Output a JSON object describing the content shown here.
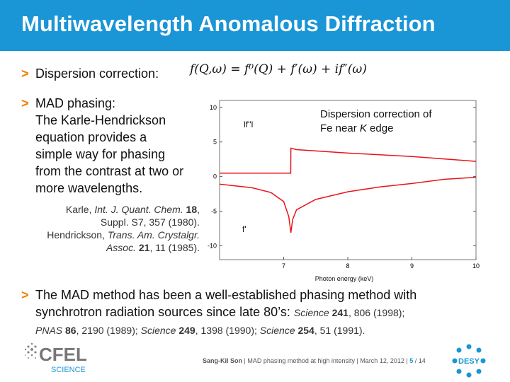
{
  "title": "Multiwavelength Anomalous Diffraction",
  "bullet1": {
    "label": "Dispersion correction:",
    "formula": "f(Q,ω) = f⁰(Q) + f′(ω) + if″(ω)"
  },
  "bullet2": {
    "lines": [
      "MAD phasing:",
      "The Karle-Hendrickson",
      "equation provides a",
      "simple way for phasing",
      "from the contrast at two or",
      "more wavelengths."
    ]
  },
  "refs": [
    [
      "Karle, ",
      "Int. J. Quant. Chem.",
      " 18",
      ","
    ],
    [
      "Suppl. S7, 357 (1980)."
    ],
    [
      "Hendrickson, ",
      "Trans. Am. Crystalgr."
    ],
    [
      "Assoc.",
      " 21",
      ", 11 (1985)."
    ]
  ],
  "chart_data": {
    "type": "line",
    "annotation": "Dispersion correction of Fe near K edge",
    "annotation_line1": "Dispersion correction of",
    "annotation_line2_pre": "Fe near ",
    "annotation_line2_ital": "K",
    "annotation_line2_post": " edge",
    "xlabel": "Photon energy (keV)",
    "xlim": [
      6,
      10
    ],
    "ylim": [
      -12,
      11
    ],
    "xticks": [
      7,
      8,
      9,
      10
    ],
    "yticks": [
      10,
      5,
      0,
      -5,
      -10
    ],
    "series": [
      {
        "name": "lf''l",
        "color": "#e8141b",
        "points": [
          [
            6,
            0.5
          ],
          [
            7.05,
            0.5
          ],
          [
            7.11,
            0.5
          ],
          [
            7.112,
            4.1
          ],
          [
            7.2,
            3.9
          ],
          [
            8,
            3.4
          ],
          [
            9,
            2.9
          ],
          [
            10,
            2.2
          ]
        ]
      },
      {
        "name": "f'",
        "color": "#e8141b",
        "points": [
          [
            6,
            -1.1
          ],
          [
            6.5,
            -1.6
          ],
          [
            6.8,
            -2.3
          ],
          [
            7.0,
            -3.6
          ],
          [
            7.08,
            -5.8
          ],
          [
            7.112,
            -8.1
          ],
          [
            7.14,
            -6.2
          ],
          [
            7.2,
            -4.8
          ],
          [
            7.5,
            -3.3
          ],
          [
            8,
            -2.2
          ],
          [
            8.5,
            -1.5
          ],
          [
            9,
            -1.0
          ],
          [
            9.5,
            -0.4
          ],
          [
            10,
            -0.1
          ]
        ]
      }
    ]
  },
  "bottom": {
    "line1": "The MAD method has been a well-established phasing method with",
    "line2": "synchrotron radiation sources since late 80’s: ",
    "cite1": [
      [
        "Science",
        " 241",
        ", 806 (1998);"
      ]
    ],
    "cite2": [
      [
        "PNAS",
        " 86",
        ", 2190 (1989); "
      ],
      [
        "Science",
        " 249",
        ", 1398 (1990); "
      ],
      [
        "Science",
        " 254",
        ", 51 (1991)."
      ]
    ]
  },
  "footer": {
    "author": "Sang-Kil Son",
    "talk": "MAD phasing method at high intensity",
    "date": "March 12, 2012",
    "page": "5",
    "total": "/ 14"
  },
  "logos": {
    "cfel_text": "CFEL",
    "cfel_sub": "SCIENCE",
    "desy": "DESY"
  },
  "colors": {
    "accent": "#1a95d6",
    "bullet": "#f07d00",
    "curve": "#e8141b"
  }
}
